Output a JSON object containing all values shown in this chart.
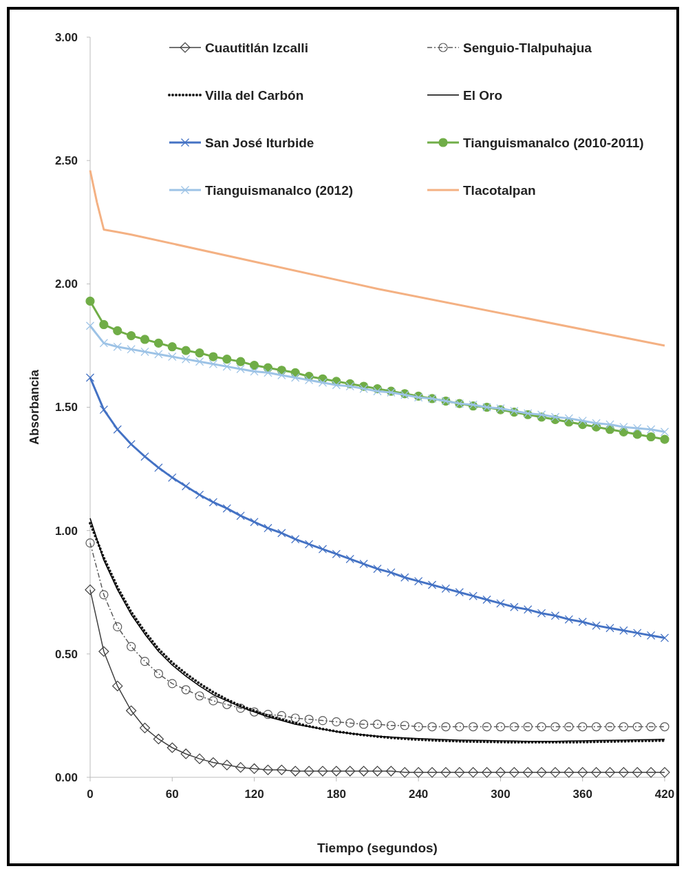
{
  "chart_data": {
    "type": "line",
    "xlabel": "Tiempo (segundos)",
    "ylabel": "Absorbancia",
    "xlim": [
      0,
      420
    ],
    "xticks": [
      0,
      60,
      120,
      180,
      240,
      300,
      360,
      420
    ],
    "ylim": [
      0,
      3
    ],
    "yticks": [
      {
        "value": 0,
        "label": "0.00"
      },
      {
        "value": 0.5,
        "label": "0.50"
      },
      {
        "value": 1,
        "label": "1.00"
      },
      {
        "value": 1.5,
        "label": "1.50"
      },
      {
        "value": 2,
        "label": "2.00"
      },
      {
        "value": 2.5,
        "label": "2.50"
      },
      {
        "value": 3,
        "label": "3.00"
      }
    ],
    "grid": false,
    "legend": "top",
    "x": [
      0,
      10,
      20,
      30,
      40,
      50,
      60,
      70,
      80,
      90,
      100,
      110,
      120,
      130,
      140,
      150,
      160,
      170,
      180,
      190,
      200,
      210,
      220,
      230,
      240,
      250,
      260,
      270,
      280,
      290,
      300,
      310,
      320,
      330,
      340,
      350,
      360,
      370,
      380,
      390,
      400,
      410,
      420
    ],
    "series": [
      {
        "name": "Cuautitlán Izcalli",
        "color": "#404040",
        "marker": "diamond",
        "line_style": "solid",
        "values": [
          0.76,
          0.51,
          0.37,
          0.27,
          0.2,
          0.155,
          0.12,
          0.095,
          0.075,
          0.06,
          0.05,
          0.04,
          0.035,
          0.03,
          0.03,
          0.025,
          0.025,
          0.025,
          0.025,
          0.025,
          0.025,
          0.025,
          0.025,
          0.02,
          0.02,
          0.02,
          0.02,
          0.02,
          0.02,
          0.02,
          0.02,
          0.02,
          0.02,
          0.02,
          0.02,
          0.02,
          0.02,
          0.02,
          0.02,
          0.02,
          0.02,
          0.02,
          0.02
        ]
      },
      {
        "name": "Senguio-Tlalpuhajua",
        "color": "#595959",
        "marker": "circle",
        "line_style": "dashed",
        "values": [
          0.95,
          0.74,
          0.61,
          0.53,
          0.47,
          0.42,
          0.38,
          0.355,
          0.33,
          0.31,
          0.295,
          0.28,
          0.265,
          0.255,
          0.25,
          0.24,
          0.235,
          0.23,
          0.225,
          0.22,
          0.215,
          0.215,
          0.21,
          0.21,
          0.205,
          0.205,
          0.205,
          0.205,
          0.205,
          0.205,
          0.205,
          0.205,
          0.205,
          0.205,
          0.205,
          0.205,
          0.205,
          0.205,
          0.205,
          0.205,
          0.205,
          0.205,
          0.205
        ]
      },
      {
        "name": "Villa del Carbón",
        "color": "#1a1a1a",
        "marker": "none",
        "line_style": "dotted",
        "values": [
          1.03,
          0.89,
          0.77,
          0.67,
          0.59,
          0.52,
          0.465,
          0.42,
          0.38,
          0.345,
          0.315,
          0.29,
          0.27,
          0.25,
          0.235,
          0.22,
          0.207,
          0.196,
          0.186,
          0.178,
          0.171,
          0.165,
          0.16,
          0.156,
          0.153,
          0.15,
          0.148,
          0.146,
          0.145,
          0.144,
          0.143,
          0.142,
          0.142,
          0.142,
          0.142,
          0.142,
          0.143,
          0.144,
          0.145,
          0.146,
          0.147,
          0.148,
          0.149
        ]
      },
      {
        "name": "El Oro",
        "color": "#000000",
        "marker": "none",
        "line_style": "solid",
        "values": [
          1.05,
          0.88,
          0.76,
          0.66,
          0.58,
          0.51,
          0.455,
          0.41,
          0.37,
          0.335,
          0.31,
          0.285,
          0.265,
          0.245,
          0.23,
          0.215,
          0.205,
          0.195,
          0.185,
          0.178,
          0.172,
          0.167,
          0.163,
          0.16,
          0.157,
          0.155,
          0.153,
          0.151,
          0.15,
          0.149,
          0.148,
          0.147,
          0.146,
          0.146,
          0.146,
          0.147,
          0.148,
          0.149,
          0.15,
          0.151,
          0.152,
          0.153,
          0.154
        ]
      },
      {
        "name": "San José Iturbide",
        "color": "#4472c4",
        "marker": "cross",
        "line_style": "solid",
        "values": [
          1.62,
          1.49,
          1.41,
          1.35,
          1.3,
          1.255,
          1.215,
          1.18,
          1.145,
          1.115,
          1.09,
          1.06,
          1.035,
          1.01,
          0.99,
          0.965,
          0.945,
          0.925,
          0.905,
          0.885,
          0.865,
          0.845,
          0.83,
          0.81,
          0.795,
          0.78,
          0.765,
          0.75,
          0.735,
          0.72,
          0.705,
          0.69,
          0.68,
          0.665,
          0.655,
          0.64,
          0.63,
          0.615,
          0.605,
          0.595,
          0.585,
          0.575,
          0.565
        ]
      },
      {
        "name": "Tianguismanalco (2010-2011)",
        "color": "#70ad47",
        "marker": "circle",
        "line_style": "solid",
        "values": [
          1.93,
          1.835,
          1.81,
          1.79,
          1.775,
          1.76,
          1.745,
          1.73,
          1.72,
          1.705,
          1.695,
          1.685,
          1.67,
          1.66,
          1.65,
          1.64,
          1.625,
          1.615,
          1.605,
          1.595,
          1.585,
          1.575,
          1.565,
          1.555,
          1.545,
          1.535,
          1.525,
          1.515,
          1.505,
          1.5,
          1.49,
          1.48,
          1.47,
          1.46,
          1.45,
          1.44,
          1.43,
          1.42,
          1.41,
          1.4,
          1.39,
          1.38,
          1.37
        ]
      },
      {
        "name": "Tianguismanalco (2012)",
        "color": "#9dc3e6",
        "marker": "cross",
        "line_style": "solid",
        "values": [
          1.83,
          1.76,
          1.745,
          1.735,
          1.725,
          1.715,
          1.705,
          1.695,
          1.685,
          1.675,
          1.665,
          1.655,
          1.645,
          1.64,
          1.63,
          1.62,
          1.61,
          1.6,
          1.59,
          1.585,
          1.575,
          1.565,
          1.56,
          1.55,
          1.54,
          1.535,
          1.525,
          1.515,
          1.51,
          1.5,
          1.495,
          1.485,
          1.475,
          1.47,
          1.46,
          1.455,
          1.445,
          1.435,
          1.43,
          1.42,
          1.415,
          1.41,
          1.4
        ]
      },
      {
        "name": "Tlacotalpan",
        "color": "#f4b183",
        "marker": "none",
        "line_style": "solid",
        "x": [
          0,
          5,
          10,
          20,
          30,
          210,
          420
        ],
        "values": [
          2.46,
          2.33,
          2.22,
          2.21,
          2.2,
          1.98,
          1.75
        ]
      }
    ]
  }
}
